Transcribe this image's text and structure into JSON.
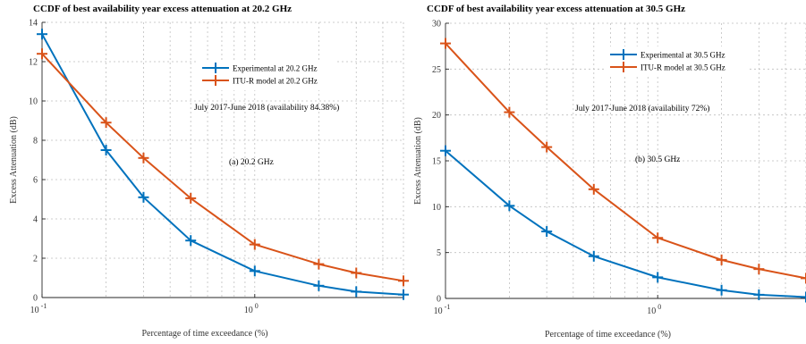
{
  "chart_data": [
    {
      "type": "line",
      "title": "CCDF of best availability year excess attenuation at 20.2 GHz",
      "xlabel": "Percentage of time exceedance (%)",
      "ylabel": "Excess Attenuation (dB)",
      "xscale": "log",
      "xlim": [
        0.1,
        5
      ],
      "ylim": [
        0,
        14
      ],
      "yticks": [
        "0",
        "2",
        "4",
        "6",
        "8",
        "10",
        "12",
        "14"
      ],
      "xticks": [
        {
          "base": "10",
          "exp": "-1"
        },
        {
          "base": "10",
          "exp": "0"
        }
      ],
      "grid": true,
      "legend_position": "top-right",
      "series": [
        {
          "name": "Experimental at 20.2 GHz",
          "color": "#0072BD",
          "x": [
            0.1,
            0.2,
            0.3,
            0.5,
            1,
            2,
            3,
            5
          ],
          "y": [
            13.4,
            7.5,
            5.1,
            2.9,
            1.35,
            0.6,
            0.3,
            0.15
          ]
        },
        {
          "name": "ITU-R model at 20.2 GHz",
          "color": "#D95319",
          "x": [
            0.1,
            0.2,
            0.3,
            0.5,
            1,
            2,
            3,
            5
          ],
          "y": [
            12.4,
            8.9,
            7.1,
            5.05,
            2.7,
            1.7,
            1.25,
            0.85
          ]
        }
      ],
      "annotations": [
        "July 2017-June 2018 (availability 84.38%)",
        "(a) 20.2 GHz"
      ]
    },
    {
      "type": "line",
      "title": "CCDF of best availability year excess attenuation at 30.5 GHz",
      "xlabel": "Percentage of time exceedance (%)",
      "ylabel": "Excess Attenuation (dB)",
      "xscale": "log",
      "xlim": [
        0.1,
        5
      ],
      "ylim": [
        0,
        30
      ],
      "yticks": [
        "0",
        "5",
        "10",
        "15",
        "20",
        "25",
        "30"
      ],
      "xticks": [
        {
          "base": "10",
          "exp": "-1"
        },
        {
          "base": "10",
          "exp": "0"
        }
      ],
      "grid": true,
      "legend_position": "top-right",
      "series": [
        {
          "name": "Experimental at 30.5 GHz",
          "color": "#0072BD",
          "x": [
            0.1,
            0.2,
            0.3,
            0.5,
            1,
            2,
            3,
            5
          ],
          "y": [
            16.1,
            10.1,
            7.3,
            4.6,
            2.3,
            0.9,
            0.4,
            0.15
          ]
        },
        {
          "name": "ITU-R model at 30.5 GHz",
          "color": "#D95319",
          "x": [
            0.1,
            0.2,
            0.3,
            0.5,
            1,
            2,
            3,
            5
          ],
          "y": [
            27.8,
            20.3,
            16.5,
            11.9,
            6.6,
            4.2,
            3.2,
            2.2
          ]
        }
      ],
      "annotations": [
        "July 2017-June 2018 (availability 72%)",
        "(b) 30.5 GHz"
      ]
    }
  ]
}
